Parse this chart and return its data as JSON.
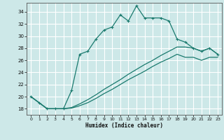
{
  "xlabel": "Humidex (Indice chaleur)",
  "background_color": "#cde8e8",
  "grid_color": "#b0d8d8",
  "line_color": "#1a7a6e",
  "xlim": [
    -0.5,
    23.5
  ],
  "ylim": [
    17.0,
    35.5
  ],
  "yticks": [
    18,
    20,
    22,
    24,
    26,
    28,
    30,
    32,
    34
  ],
  "xticks": [
    0,
    1,
    2,
    3,
    4,
    5,
    6,
    7,
    8,
    9,
    10,
    11,
    12,
    13,
    14,
    15,
    16,
    17,
    18,
    19,
    20,
    21,
    22,
    23
  ],
  "s1_x": [
    0,
    1,
    2,
    3,
    4,
    5,
    6,
    7,
    8,
    9,
    10,
    11,
    12,
    13,
    14,
    15,
    16,
    17,
    18,
    19,
    20,
    21,
    22,
    23
  ],
  "s1_y": [
    20.0,
    19.0,
    18.0,
    18.0,
    18.0,
    21.0,
    27.0,
    27.5,
    29.5,
    31.0,
    31.5,
    33.5,
    32.5,
    35.0,
    33.0,
    33.0,
    33.0,
    32.5,
    29.5,
    29.0,
    28.0,
    27.5,
    28.0,
    27.0
  ],
  "s2_x": [
    0,
    1,
    2,
    3,
    4,
    5,
    6,
    7,
    8,
    9,
    10,
    11,
    12,
    13,
    14,
    15,
    16,
    17,
    18,
    19,
    20,
    21,
    22,
    23
  ],
  "s2_y": [
    20.0,
    19.0,
    18.0,
    18.0,
    18.0,
    18.2,
    18.8,
    19.5,
    20.3,
    21.2,
    22.0,
    22.8,
    23.7,
    24.5,
    25.3,
    26.0,
    26.8,
    27.5,
    28.2,
    28.2,
    28.0,
    27.5,
    28.0,
    27.0
  ],
  "s3_x": [
    0,
    1,
    2,
    3,
    4,
    5,
    6,
    7,
    8,
    9,
    10,
    11,
    12,
    13,
    14,
    15,
    16,
    17,
    18,
    19,
    20,
    21,
    22,
    23
  ],
  "s3_y": [
    20.0,
    19.0,
    18.0,
    18.0,
    18.0,
    18.1,
    18.5,
    19.0,
    19.7,
    20.5,
    21.2,
    22.0,
    22.8,
    23.5,
    24.2,
    25.0,
    25.7,
    26.3,
    27.0,
    26.5,
    26.5,
    26.0,
    26.5,
    26.5
  ]
}
